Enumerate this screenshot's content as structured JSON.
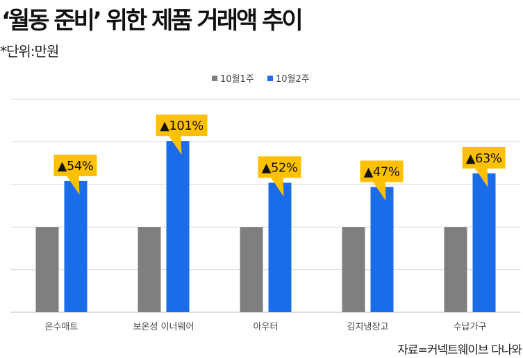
{
  "chart_data": {
    "type": "bar",
    "title": "‘월동 준비’ 위한 제품 거래액 추이",
    "unit_note": "*단위:만원",
    "source": "자료=커넥트웨이브 다나와",
    "categories": [
      "온수매트",
      "보온성 이너웨어",
      "아우터",
      "김치냉장고",
      "수납가구"
    ],
    "series": [
      {
        "name": "10월1주",
        "color": "#7f7f7f",
        "values": [
          100,
          100,
          100,
          100,
          100
        ]
      },
      {
        "name": "10월2주",
        "color": "#1a6ce8",
        "values": [
          154,
          201,
          152,
          147,
          163
        ]
      }
    ],
    "annotations": [
      "▲54%",
      "▲101%",
      "▲52%",
      "▲47%",
      "▲63%"
    ],
    "annotation_color": "#ffc000",
    "ylim": [
      0,
      250
    ],
    "grid": true,
    "legend_position": "top"
  }
}
